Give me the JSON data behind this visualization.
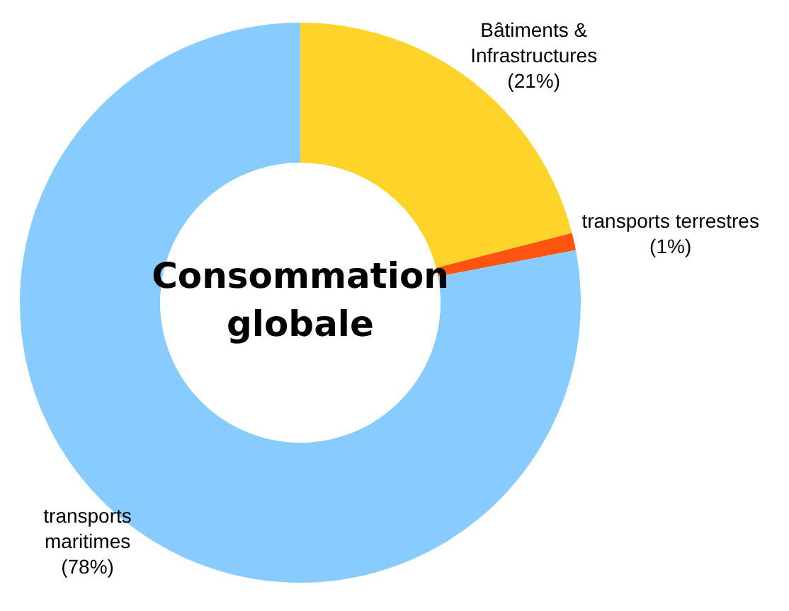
{
  "chart_data": {
    "type": "donut",
    "title": "Consommation globale",
    "categories": [
      "Bâtiments & Infrastructures",
      "transports terrestres",
      "transports maritimes"
    ],
    "values": [
      21,
      1,
      78
    ],
    "colors": [
      "#ffd42a",
      "#ff5511",
      "#88ccff"
    ],
    "value_labels": [
      "(21%)",
      "(1%)",
      "(78%)"
    ],
    "legend": false
  }
}
